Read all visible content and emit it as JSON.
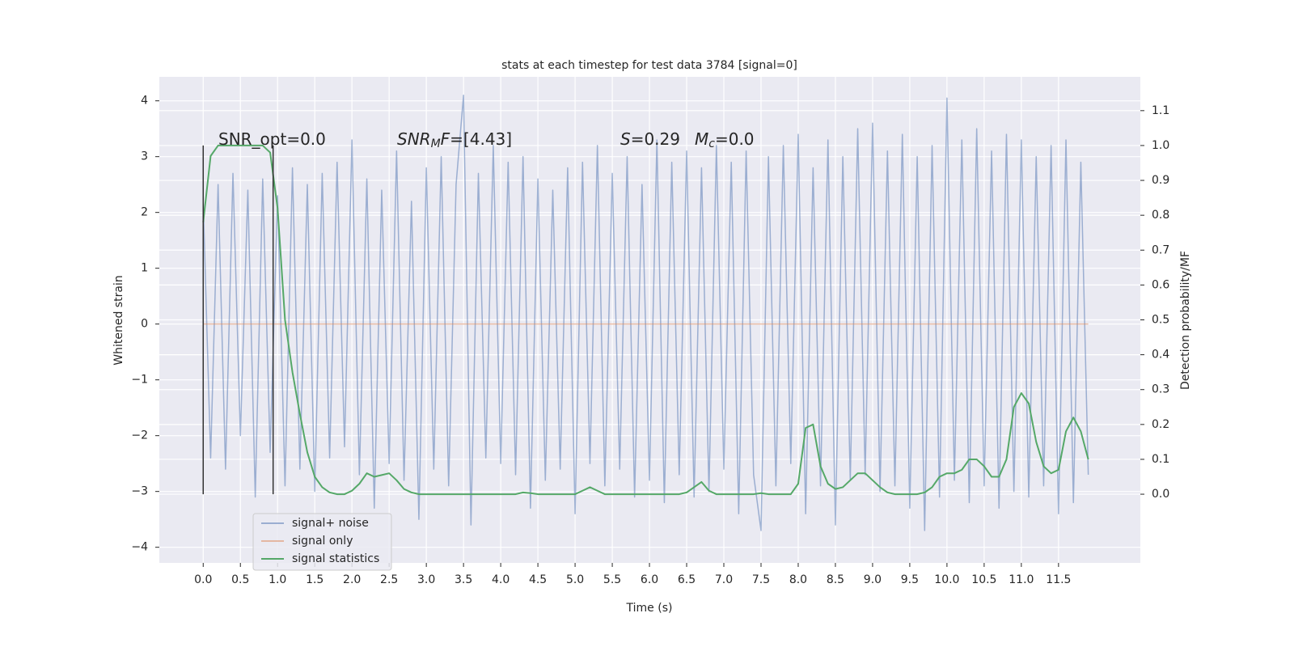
{
  "chart_data": {
    "type": "line",
    "title": "stats at each timestep for test data 3784 [signal=0]",
    "xlabel": "Time (s)",
    "ylabel": "Whitened strain",
    "y2label": "Detection probability/MF",
    "xlim": [
      -0.59,
      12.6
    ],
    "ylim": [
      -4.28,
      4.43
    ],
    "y2lim": [
      -0.197,
      1.197
    ],
    "xticks": [
      {
        "value": 0,
        "label": "0.0"
      },
      {
        "value": 0.5,
        "label": "0.5"
      },
      {
        "value": 1,
        "label": "1.0"
      },
      {
        "value": 1.5,
        "label": "1.5"
      },
      {
        "value": 2,
        "label": "2.0"
      },
      {
        "value": 2.5,
        "label": "2.5"
      },
      {
        "value": 3,
        "label": "3.0"
      },
      {
        "value": 3.5,
        "label": "3.5"
      },
      {
        "value": 4,
        "label": "4.0"
      },
      {
        "value": 4.5,
        "label": "4.5"
      },
      {
        "value": 5,
        "label": "5.0"
      },
      {
        "value": 5.5,
        "label": "5.5"
      },
      {
        "value": 6,
        "label": "6.0"
      },
      {
        "value": 6.5,
        "label": "6.5"
      },
      {
        "value": 7,
        "label": "7.0"
      },
      {
        "value": 7.5,
        "label": "7.5"
      },
      {
        "value": 8,
        "label": "8.0"
      },
      {
        "value": 8.5,
        "label": "8.5"
      },
      {
        "value": 9,
        "label": "9.0"
      },
      {
        "value": 9.5,
        "label": "9.5"
      },
      {
        "value": 10,
        "label": "10.0"
      },
      {
        "value": 10.5,
        "label": "10.5"
      },
      {
        "value": 11,
        "label": "11.0"
      },
      {
        "value": 11.5,
        "label": "11.5"
      }
    ],
    "yticks": [
      {
        "value": -4,
        "label": "−4"
      },
      {
        "value": -3,
        "label": "−3"
      },
      {
        "value": -2,
        "label": "−2"
      },
      {
        "value": -1,
        "label": "−1"
      },
      0,
      1,
      2,
      3,
      4
    ],
    "y2ticks": [
      {
        "value": 0,
        "label": "0.0"
      },
      {
        "value": 0.1,
        "label": "0.1"
      },
      {
        "value": 0.2,
        "label": "0.2"
      },
      {
        "value": 0.3,
        "label": "0.3"
      },
      {
        "value": 0.4,
        "label": "0.4"
      },
      {
        "value": 0.5,
        "label": "0.5"
      },
      {
        "value": 0.6,
        "label": "0.6"
      },
      {
        "value": 0.7,
        "label": "0.7"
      },
      {
        "value": 0.8,
        "label": "0.8"
      },
      {
        "value": 0.9,
        "label": "0.9"
      },
      {
        "value": 1,
        "label": "1.0"
      },
      {
        "value": 1.1,
        "label": "1.1"
      }
    ],
    "grid": true,
    "legend": "lower left",
    "x": [
      0,
      0.1,
      0.2,
      0.3,
      0.4,
      0.5,
      0.6,
      0.7,
      0.8,
      0.9,
      1,
      1.1,
      1.2,
      1.3,
      1.4,
      1.5,
      1.6,
      1.7,
      1.8,
      1.9,
      2,
      2.1,
      2.2,
      2.3,
      2.4,
      2.5,
      2.6,
      2.7,
      2.8,
      2.9,
      3,
      3.1,
      3.2,
      3.3,
      3.4,
      3.5,
      3.6,
      3.7,
      3.8,
      3.9,
      4,
      4.1,
      4.2,
      4.3,
      4.4,
      4.5,
      4.6,
      4.7,
      4.8,
      4.9,
      5,
      5.1,
      5.2,
      5.3,
      5.4,
      5.5,
      5.6,
      5.7,
      5.8,
      5.9,
      6,
      6.1,
      6.2,
      6.3,
      6.4,
      6.5,
      6.6,
      6.7,
      6.8,
      6.9,
      7,
      7.1,
      7.2,
      7.3,
      7.4,
      7.5,
      7.6,
      7.7,
      7.8,
      7.9,
      8,
      8.1,
      8.2,
      8.3,
      8.4,
      8.5,
      8.6,
      8.7,
      8.8,
      8.9,
      9,
      9.1,
      9.2,
      9.3,
      9.4,
      9.5,
      9.6,
      9.7,
      9.8,
      9.9,
      10,
      10.1,
      10.2,
      10.3,
      10.4,
      10.5,
      10.6,
      10.7,
      10.8,
      10.9,
      11,
      11.1,
      11.2,
      11.3,
      11.4,
      11.5,
      11.6,
      11.7,
      11.8,
      11.9
    ],
    "series": [
      {
        "name": "signal+ noise",
        "color": "#4c72b0",
        "opacity": 0.5,
        "values": [
          2.2,
          -2.4,
          2.5,
          -2.6,
          2.7,
          -2.0,
          2.4,
          -3.1,
          2.6,
          -2.3,
          2.3,
          -2.9,
          2.8,
          -2.6,
          2.5,
          -3.0,
          2.7,
          -2.4,
          2.9,
          -2.2,
          3.3,
          -2.7,
          2.6,
          -3.3,
          2.4,
          -2.5,
          3.1,
          -2.8,
          2.2,
          -3.5,
          2.8,
          -2.6,
          3.0,
          -2.9,
          2.5,
          4.1,
          -3.6,
          2.7,
          -2.4,
          3.2,
          -2.5,
          2.9,
          -2.7,
          3.0,
          -3.3,
          2.6,
          -2.8,
          2.4,
          -2.6,
          2.8,
          -3.4,
          2.9,
          -2.5,
          3.2,
          -2.9,
          2.7,
          -2.6,
          3.0,
          -3.1,
          2.5,
          -2.8,
          3.3,
          -3.2,
          2.9,
          -2.7,
          3.1,
          -3.1,
          2.8,
          -3.0,
          3.2,
          -2.6,
          2.9,
          -3.4,
          3.1,
          -2.7,
          -3.7,
          3.0,
          -2.9,
          3.2,
          -2.5,
          3.4,
          -3.4,
          2.8,
          -2.9,
          3.3,
          -3.6,
          3.0,
          -2.8,
          3.5,
          -2.7,
          3.6,
          -3.0,
          3.1,
          -2.9,
          3.4,
          -3.3,
          3.0,
          -3.7,
          3.2,
          -3.1,
          4.05,
          -2.8,
          3.3,
          -3.2,
          3.5,
          -2.9,
          3.1,
          -3.3,
          3.4,
          -3.0,
          3.3,
          -3.1,
          3.0,
          -2.9,
          3.2,
          -3.4,
          3.3,
          -3.2,
          2.9,
          -2.7
        ]
      },
      {
        "name": "signal only",
        "color": "#dd8452",
        "opacity": 0.5,
        "values": [
          0,
          0,
          0,
          0,
          0,
          0,
          0,
          0,
          0,
          0,
          0,
          0,
          0,
          0,
          0,
          0,
          0,
          0,
          0,
          0,
          0,
          0,
          0,
          0,
          0,
          0,
          0,
          0,
          0,
          0,
          0,
          0,
          0,
          0,
          0,
          0,
          0,
          0,
          0,
          0,
          0,
          0,
          0,
          0,
          0,
          0,
          0,
          0,
          0,
          0,
          0,
          0,
          0,
          0,
          0,
          0,
          0,
          0,
          0,
          0,
          0,
          0,
          0,
          0,
          0,
          0,
          0,
          0,
          0,
          0,
          0,
          0,
          0,
          0,
          0,
          0,
          0,
          0,
          0,
          0,
          0,
          0,
          0,
          0,
          0,
          0,
          0,
          0,
          0,
          0,
          0,
          0,
          0,
          0,
          0,
          0,
          0,
          0,
          0,
          0,
          0,
          0,
          0,
          0,
          0,
          0,
          0,
          0,
          0,
          0,
          0,
          0,
          0,
          0,
          0,
          0,
          0,
          0,
          0,
          0
        ]
      },
      {
        "name": "signal statistics",
        "color": "#55a868",
        "opacity": 1,
        "axis": "y2",
        "values": [
          0.78,
          0.97,
          1.0,
          1.0,
          1.0,
          1.0,
          1.0,
          1.0,
          1.0,
          0.98,
          0.82,
          0.5,
          0.35,
          0.23,
          0.12,
          0.05,
          0.02,
          0.005,
          0,
          0,
          0.01,
          0.03,
          0.06,
          0.05,
          0.055,
          0.06,
          0.04,
          0.015,
          0.005,
          0,
          0,
          0,
          0,
          0,
          0,
          0,
          0,
          0,
          0,
          0,
          0,
          0,
          0,
          0.005,
          0.003,
          0,
          0,
          0,
          0,
          0,
          0,
          0.01,
          0.02,
          0.01,
          0,
          0,
          0,
          0,
          0,
          0,
          0,
          0,
          0,
          0,
          0,
          0.005,
          0.02,
          0.035,
          0.01,
          0,
          0,
          0,
          0,
          0,
          0,
          0.003,
          0,
          0,
          0,
          0,
          0.03,
          0.19,
          0.2,
          0.08,
          0.03,
          0.015,
          0.02,
          0.04,
          0.06,
          0.06,
          0.04,
          0.02,
          0.005,
          0,
          0,
          0,
          0,
          0.005,
          0.02,
          0.05,
          0.06,
          0.06,
          0.07,
          0.1,
          0.1,
          0.08,
          0.05,
          0.05,
          0.1,
          0.25,
          0.29,
          0.26,
          0.15,
          0.08,
          0.06,
          0.07,
          0.18,
          0.22,
          0.18,
          0.1
        ]
      }
    ],
    "vlines": {
      "x": [
        0,
        0.94
      ],
      "ymin": -3.05,
      "ymax": 3.2,
      "color": "#333333"
    },
    "annotations": [
      [
        {
          "text": "SNR_opt=0.0"
        }
      ],
      [
        {
          "text": "SNR",
          "italic": true
        },
        {
          "text": "M",
          "italic": true,
          "sub": true
        },
        {
          "text": "F",
          "italic": true
        },
        {
          "text": "=[4.43]"
        }
      ],
      [
        {
          "text": "S",
          "italic": true
        },
        {
          "text": "=0.29"
        }
      ],
      [
        {
          "text": "M",
          "italic": true
        },
        {
          "text": "c",
          "italic": true,
          "sub": true
        },
        {
          "text": "=0.0"
        }
      ]
    ]
  }
}
